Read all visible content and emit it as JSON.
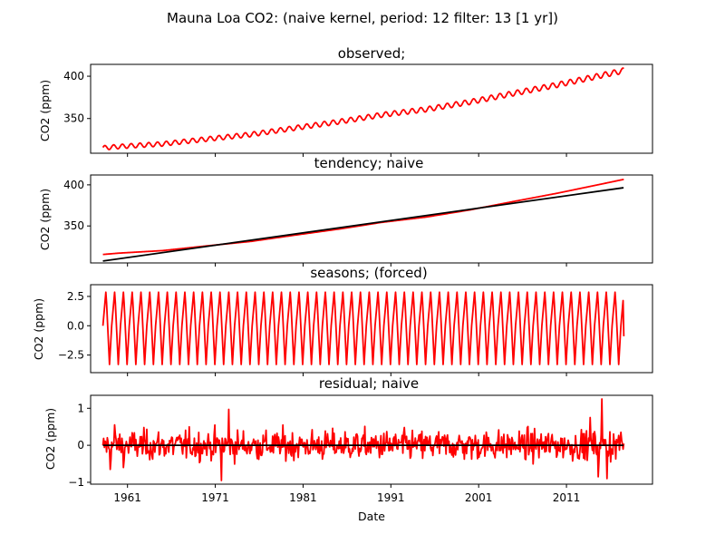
{
  "chart_data": {
    "type": "line",
    "suptitle": "Mauna Loa CO2: (naive kernel, period: 12 filter: 13 [1 yr])",
    "xlabel": "Date",
    "x_range": [
      1956.8,
      2020.8
    ],
    "x_ticks": [
      1961,
      1971,
      1981,
      1991,
      2001,
      2011
    ],
    "x_tick_labels": [
      "1961",
      "1971",
      "1981",
      "1991",
      "2001",
      "2011"
    ],
    "data_x_range": [
      1958.2,
      2017.5
    ],
    "grid": false,
    "legend": "none",
    "colors": {
      "data": "#ff0000",
      "reference": "#000000"
    },
    "panels": [
      {
        "title": "observed;",
        "ylabel": "CO2 (ppm)",
        "ylim": [
          309,
          414
        ],
        "y_ticks": [
          350,
          400
        ],
        "series": [
          {
            "color": "#ff0000",
            "x": [
              1958.2,
              1960,
              1965,
              1970,
              1975,
              1980,
              1985,
              1990,
              1995,
              2000,
              2005,
              2010,
              2015,
              2017.5
            ],
            "values": [
              315.3,
              316.9,
              320.0,
              325.7,
              331.1,
              338.7,
              346.1,
              354.4,
              360.8,
              369.5,
              379.8,
              389.9,
              401.0,
              406.6
            ],
            "seasonal_amplitude": [
              2.6,
              3.2
            ]
          }
        ]
      },
      {
        "title": "tendency; naive",
        "ylabel": "CO2 (ppm)",
        "ylim": [
          305,
          412
        ],
        "y_ticks": [
          350,
          400
        ],
        "series": [
          {
            "color": "#ff0000",
            "x": [
              1958.2,
              1960,
              1965,
              1970,
              1975,
              1980,
              1985,
              1990,
              1995,
              2000,
              2005,
              2010,
              2015,
              2017.5
            ],
            "values": [
              315.3,
              316.9,
              320.0,
              325.7,
              331.1,
              338.7,
              346.1,
              354.4,
              360.8,
              369.5,
              379.8,
              389.9,
              401.0,
              406.6
            ]
          },
          {
            "color": "#000000",
            "x": [
              1958.2,
              2017.5
            ],
            "values": [
              307.3,
              396.5
            ]
          }
        ]
      },
      {
        "title": "seasons;  (forced)",
        "ylabel": "CO2 (ppm)",
        "ylim": [
          -4.0,
          3.5
        ],
        "y_ticks": [
          -2.5,
          0.0,
          2.5
        ],
        "y_tick_labels": [
          "−2.5",
          "0.0",
          "2.5"
        ],
        "series": [
          {
            "color": "#ff0000",
            "period_years": 1,
            "amplitude": 3.0,
            "min": -3.3,
            "start_value": 0.0,
            "end_value": -0.9
          }
        ]
      },
      {
        "title": "residual; naive",
        "ylabel": "CO2 (ppm)",
        "ylim": [
          -1.05,
          1.35
        ],
        "y_ticks": [
          -1,
          0,
          1
        ],
        "y_tick_labels": [
          "−1",
          "0",
          "1"
        ],
        "series": [
          {
            "color": "#ff0000",
            "x": [
              1959.0,
              1959.5,
              1960.5,
              1971.7,
              1972.5,
              2013.7,
              2014.6,
              2015.0,
              2015.6,
              2017.2
            ],
            "values": [
              -0.65,
              0.55,
              -0.6,
              -0.95,
              0.97,
              0.75,
              -0.85,
              1.25,
              -0.9,
              0.35
            ],
            "noise_std": 0.28
          },
          {
            "color": "#000000",
            "x": [
              1958.2,
              2017.5
            ],
            "values": [
              0,
              0
            ]
          }
        ]
      }
    ]
  }
}
